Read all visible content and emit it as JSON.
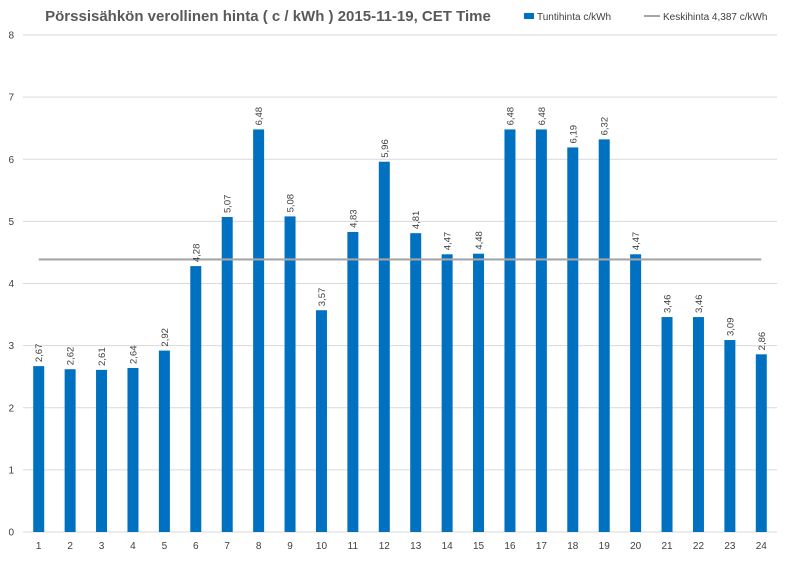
{
  "chart_data": {
    "type": "bar",
    "title": "Pörssisähkön verollinen hinta ( c / kWh ) 2015-11-19, CET Time",
    "xlabel": "",
    "ylabel": "",
    "ylim": [
      0,
      8
    ],
    "yticks": [
      "0",
      "1",
      "2",
      "3",
      "4",
      "5",
      "6",
      "7",
      "8"
    ],
    "grid": true,
    "legend_position": "top-right",
    "categories": [
      "1",
      "2",
      "3",
      "4",
      "5",
      "6",
      "7",
      "8",
      "9",
      "10",
      "11",
      "12",
      "13",
      "14",
      "15",
      "16",
      "17",
      "18",
      "19",
      "20",
      "21",
      "22",
      "23",
      "24"
    ],
    "series": [
      {
        "name": "Tuntihinta c/kWh",
        "type": "bar",
        "color": "#0070c0",
        "values": [
          2.67,
          2.62,
          2.61,
          2.64,
          2.92,
          4.28,
          5.07,
          6.48,
          5.08,
          3.57,
          4.83,
          5.96,
          4.81,
          4.47,
          4.48,
          6.48,
          6.48,
          6.19,
          6.32,
          4.47,
          3.46,
          3.46,
          3.09,
          2.86
        ],
        "labels": [
          "2,67",
          "2,62",
          "2,61",
          "2,64",
          "2,92",
          "4,28",
          "5,07",
          "6,48",
          "5,08",
          "3,57",
          "4,83",
          "5,96",
          "4,81",
          "4,47",
          "4,48",
          "6,48",
          "6,48",
          "6,19",
          "6,32",
          "4,47",
          "3,46",
          "3,46",
          "3,09",
          "2,86"
        ]
      },
      {
        "name": "Keskihinta 4,387 c/kWh",
        "type": "line",
        "color": "#a6a6a6",
        "value": 4.387
      }
    ]
  }
}
